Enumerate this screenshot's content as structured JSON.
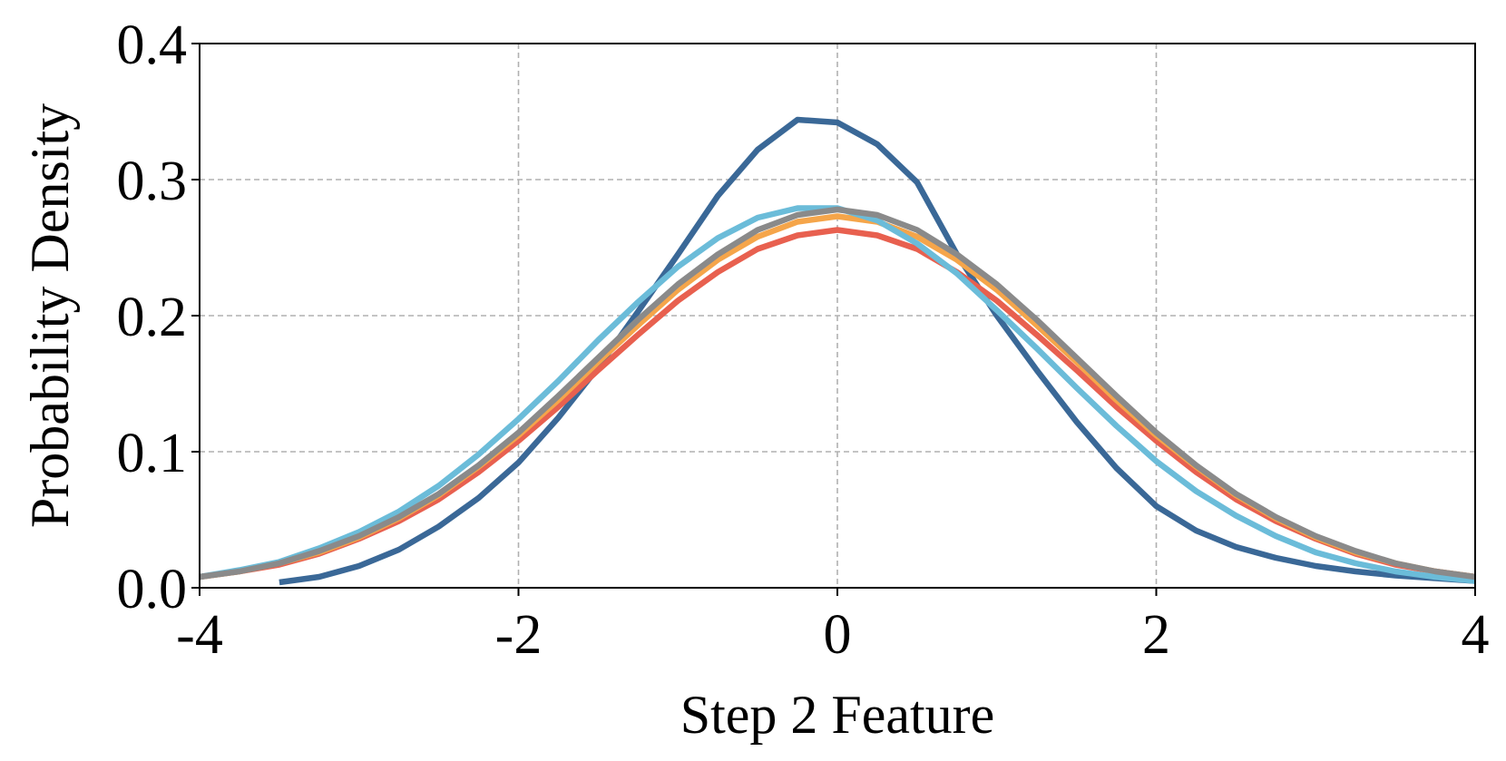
{
  "chart_data": {
    "type": "line",
    "xlabel": "Step 2 Feature",
    "ylabel": "Probability Density",
    "x": [
      -4,
      -3.75,
      -3.5,
      -3.25,
      -3,
      -2.75,
      -2.5,
      -2.25,
      -2,
      -1.75,
      -1.5,
      -1.25,
      -1,
      -0.75,
      -0.5,
      -0.25,
      0,
      0.25,
      0.5,
      0.75,
      1,
      1.25,
      1.5,
      1.75,
      2,
      2.25,
      2.5,
      2.75,
      3,
      3.25,
      3.5,
      3.75,
      4
    ],
    "series": [
      {
        "color": "#3a6897",
        "values": [
          null,
          null,
          0.004,
          0.008,
          0.016,
          0.028,
          0.045,
          0.066,
          0.092,
          0.125,
          0.162,
          0.203,
          0.245,
          0.288,
          0.322,
          0.344,
          0.342,
          0.326,
          0.298,
          0.245,
          0.2,
          0.16,
          0.122,
          0.088,
          0.06,
          0.042,
          0.03,
          0.022,
          0.016,
          0.012,
          0.009,
          0.007,
          0.005
        ]
      },
      {
        "color": "#e8604f",
        "values": [
          0.008,
          0.012,
          0.017,
          0.025,
          0.036,
          0.049,
          0.065,
          0.085,
          0.108,
          0.133,
          0.16,
          0.186,
          0.211,
          0.232,
          0.249,
          0.259,
          0.263,
          0.259,
          0.249,
          0.232,
          0.211,
          0.186,
          0.16,
          0.133,
          0.108,
          0.085,
          0.065,
          0.049,
          0.036,
          0.025,
          0.017,
          0.012,
          0.008
        ]
      },
      {
        "color": "#f5a54a",
        "values": [
          0.008,
          0.012,
          0.018,
          0.026,
          0.037,
          0.051,
          0.068,
          0.089,
          0.112,
          0.138,
          0.166,
          0.193,
          0.219,
          0.241,
          0.258,
          0.269,
          0.273,
          0.269,
          0.258,
          0.241,
          0.219,
          0.193,
          0.166,
          0.138,
          0.112,
          0.089,
          0.068,
          0.051,
          0.037,
          0.026,
          0.018,
          0.012,
          0.008
        ]
      },
      {
        "color": "#6bbcd9",
        "values": [
          0.008,
          0.013,
          0.019,
          0.029,
          0.041,
          0.056,
          0.075,
          0.098,
          0.124,
          0.152,
          0.182,
          0.21,
          0.236,
          0.257,
          0.272,
          0.279,
          0.279,
          0.27,
          0.253,
          0.231,
          0.204,
          0.176,
          0.147,
          0.119,
          0.093,
          0.071,
          0.053,
          0.038,
          0.026,
          0.018,
          0.012,
          0.008,
          0.005
        ]
      },
      {
        "color": "#8a8a8a",
        "values": [
          0.008,
          0.012,
          0.018,
          0.027,
          0.038,
          0.052,
          0.069,
          0.09,
          0.114,
          0.141,
          0.169,
          0.197,
          0.223,
          0.245,
          0.263,
          0.274,
          0.278,
          0.274,
          0.263,
          0.245,
          0.223,
          0.197,
          0.169,
          0.141,
          0.114,
          0.09,
          0.069,
          0.052,
          0.038,
          0.027,
          0.018,
          0.012,
          0.008
        ]
      }
    ],
    "xlim": [
      -4,
      4
    ],
    "ylim": [
      0,
      0.4
    ],
    "xticks": [
      -4,
      -2,
      0,
      2,
      4
    ],
    "yticks": [
      {
        "value": 0,
        "label": "0.0"
      },
      0.1,
      0.2,
      0.3,
      0.4
    ],
    "grid": true
  }
}
